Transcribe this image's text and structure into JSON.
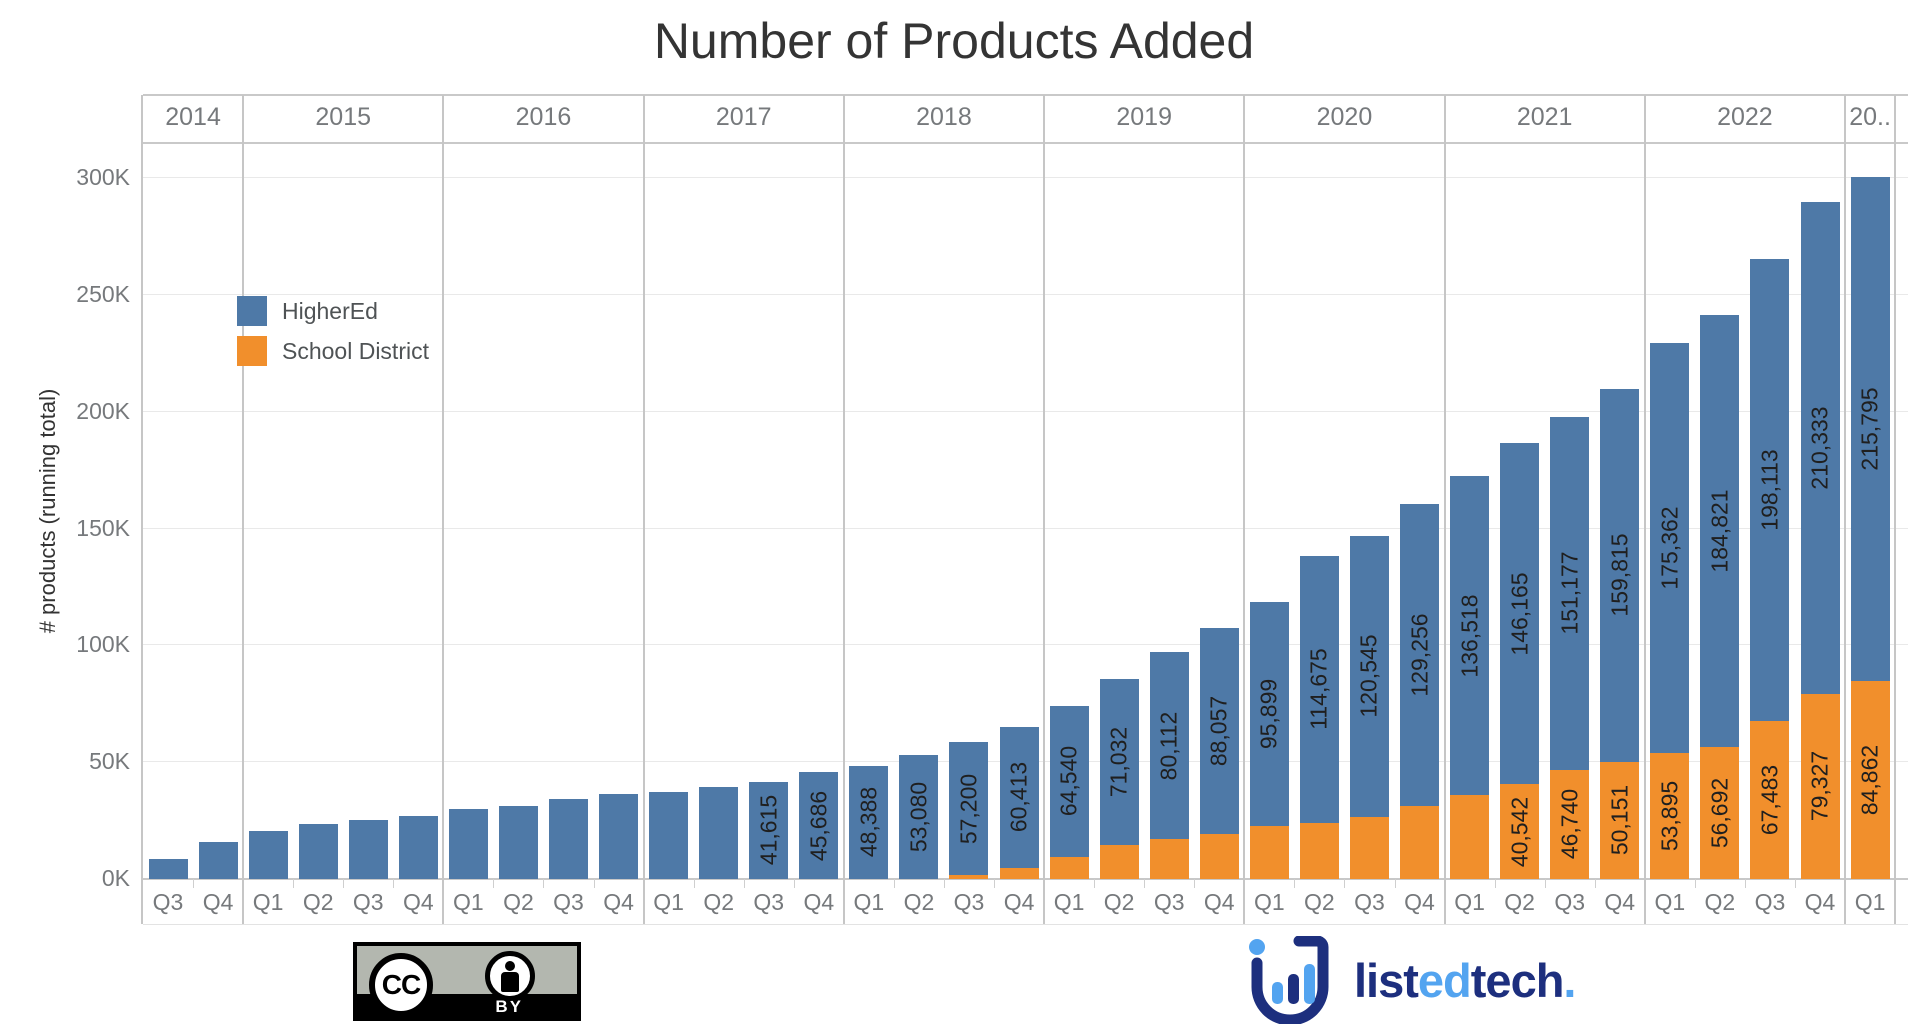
{
  "chart_data": {
    "type": "bar",
    "stacked": true,
    "title": "Number of Products Added",
    "ylabel": "# products (running total)",
    "ylim": [
      0,
      315000
    ],
    "y_ticks": [
      "0K",
      "50K",
      "100K",
      "150K",
      "200K",
      "250K",
      "300K"
    ],
    "grid": "horizontal",
    "legend_position": "inside-top-left",
    "legend": [
      {
        "name": "HigherEd",
        "color": "#4e79a7"
      },
      {
        "name": "School District",
        "color": "#f18f2c"
      }
    ],
    "years": [
      {
        "year": "2014",
        "quarters": [
          "Q3",
          "Q4"
        ]
      },
      {
        "year": "2015",
        "quarters": [
          "Q1",
          "Q2",
          "Q3",
          "Q4"
        ]
      },
      {
        "year": "2016",
        "quarters": [
          "Q1",
          "Q2",
          "Q3",
          "Q4"
        ]
      },
      {
        "year": "2017",
        "quarters": [
          "Q1",
          "Q2",
          "Q3",
          "Q4"
        ]
      },
      {
        "year": "2018",
        "quarters": [
          "Q1",
          "Q2",
          "Q3",
          "Q4"
        ]
      },
      {
        "year": "2019",
        "quarters": [
          "Q1",
          "Q2",
          "Q3",
          "Q4"
        ]
      },
      {
        "year": "2020",
        "quarters": [
          "Q1",
          "Q2",
          "Q3",
          "Q4"
        ]
      },
      {
        "year": "2021",
        "quarters": [
          "Q1",
          "Q2",
          "Q3",
          "Q4"
        ]
      },
      {
        "year": "2022",
        "quarters": [
          "Q1",
          "Q2",
          "Q3",
          "Q4"
        ]
      },
      {
        "year": "20..",
        "quarters": [
          "Q1"
        ]
      }
    ],
    "series": [
      {
        "name": "HigherEd",
        "color": "#4e79a7",
        "values": [
          8600,
          16000,
          20700,
          23400,
          25300,
          27100,
          29800,
          31300,
          34300,
          36400,
          37400,
          39300,
          41615,
          45686,
          48388,
          53080,
          57200,
          60413,
          64540,
          71032,
          80112,
          88057,
          95899,
          114675,
          120545,
          129256,
          136518,
          146165,
          151177,
          159815,
          175362,
          184821,
          198113,
          210333,
          215795
        ],
        "labels": [
          null,
          null,
          null,
          null,
          null,
          null,
          null,
          null,
          null,
          null,
          null,
          null,
          "41,615",
          "45,686",
          "48,388",
          "53,080",
          "57,200",
          "60,413",
          "64,540",
          "71,032",
          "80,112",
          "88,057",
          "95,899",
          "114,675",
          "120,545",
          "129,256",
          "136,518",
          "146,165",
          "151,177",
          "159,815",
          "175,362",
          "184,821",
          "198,113",
          "210,333",
          "215,795"
        ]
      },
      {
        "name": "School District",
        "color": "#f18f2c",
        "values": [
          0,
          0,
          0,
          0,
          0,
          0,
          0,
          0,
          0,
          0,
          0,
          0,
          0,
          0,
          0,
          0,
          1500,
          4800,
          9500,
          14700,
          17000,
          19400,
          22700,
          23800,
          26500,
          31400,
          35900,
          40542,
          46740,
          50151,
          53895,
          56692,
          67483,
          79327,
          84862
        ],
        "labels": [
          null,
          null,
          null,
          null,
          null,
          null,
          null,
          null,
          null,
          null,
          null,
          null,
          null,
          null,
          null,
          null,
          null,
          null,
          null,
          null,
          null,
          null,
          null,
          null,
          null,
          null,
          null,
          "40,542",
          "46,740",
          "50,151",
          "53,895",
          "56,692",
          "67,483",
          "79,327",
          "84,862"
        ]
      }
    ]
  },
  "license_badge": {
    "cc": "CC",
    "by": "BY"
  },
  "logo": {
    "part1": "list",
    "part2": "ed",
    "part3": "tech",
    "part4": ".",
    "dark_color": "#1d2f7e",
    "light_color": "#53a4f0"
  }
}
